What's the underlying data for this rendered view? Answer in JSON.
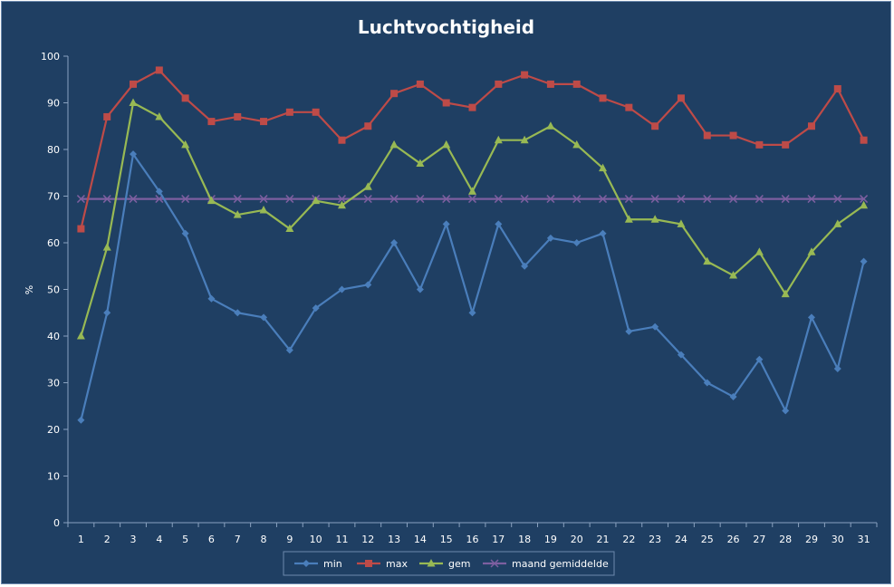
{
  "chart_data": {
    "type": "line",
    "title": "Luchtvochtigheid",
    "ylabel": "%",
    "xlabel": "",
    "ylim": [
      0,
      100
    ],
    "yticks": [
      0,
      10,
      20,
      30,
      40,
      50,
      60,
      70,
      80,
      90,
      100
    ],
    "grid": false,
    "legend_position": "bottom",
    "categories": [
      "1",
      "2",
      "3",
      "4",
      "5",
      "6",
      "7",
      "8",
      "9",
      "10",
      "11",
      "12",
      "13",
      "14",
      "15",
      "16",
      "17",
      "18",
      "19",
      "20",
      "21",
      "22",
      "23",
      "24",
      "25",
      "26",
      "27",
      "28",
      "29",
      "30",
      "31"
    ],
    "series": [
      {
        "name": "min",
        "color": "#4a7ebb",
        "marker": "diamond",
        "values": [
          22,
          45,
          79,
          71,
          62,
          48,
          45,
          44,
          37,
          46,
          50,
          51,
          60,
          50,
          64,
          45,
          64,
          55,
          61,
          60,
          62,
          41,
          42,
          36,
          30,
          27,
          35,
          24,
          44,
          33,
          56
        ]
      },
      {
        "name": "max",
        "color": "#be4b48",
        "marker": "square",
        "values": [
          63,
          87,
          94,
          97,
          91,
          86,
          87,
          86,
          88,
          88,
          82,
          85,
          92,
          94,
          90,
          89,
          94,
          96,
          94,
          94,
          91,
          89,
          85,
          91,
          83,
          83,
          81,
          81,
          85,
          93,
          82
        ]
      },
      {
        "name": "gem",
        "color": "#98b954",
        "marker": "triangle",
        "values": [
          40,
          59,
          90,
          87,
          81,
          69,
          66,
          67,
          63,
          69,
          68,
          72,
          81,
          77,
          81,
          71,
          82,
          82,
          85,
          81,
          76,
          65,
          65,
          64,
          56,
          53,
          58,
          49,
          58,
          64,
          68
        ]
      },
      {
        "name": "maand gemiddelde",
        "color": "#7d5fa0",
        "marker": "x",
        "values": [
          69.4,
          69.4,
          69.4,
          69.4,
          69.4,
          69.4,
          69.4,
          69.4,
          69.4,
          69.4,
          69.4,
          69.4,
          69.4,
          69.4,
          69.4,
          69.4,
          69.4,
          69.4,
          69.4,
          69.4,
          69.4,
          69.4,
          69.4,
          69.4,
          69.4,
          69.4,
          69.4,
          69.4,
          69.4,
          69.4,
          69.4
        ]
      }
    ]
  }
}
